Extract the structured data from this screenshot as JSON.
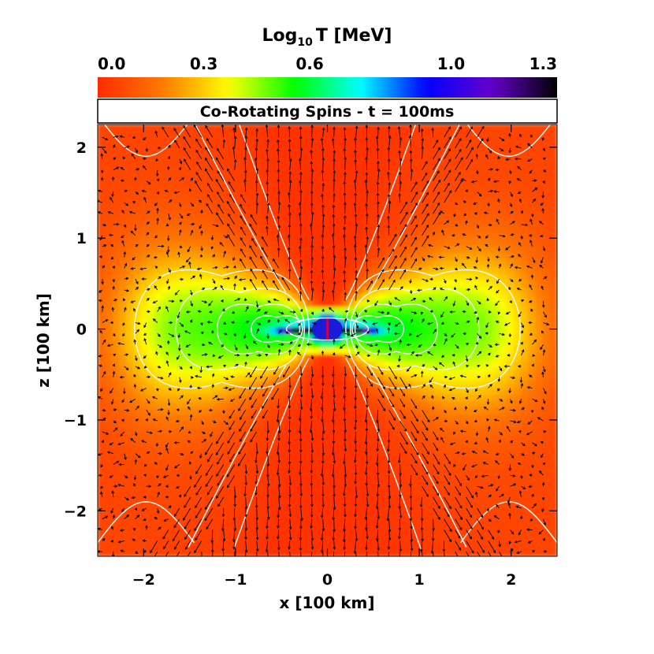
{
  "chart_data": {
    "type": "heatmap",
    "title": "Co-Rotating Spins - t = 100ms",
    "colorbar": {
      "label_main": "Log",
      "label_sub": "10",
      "label_rest": "T [MeV]",
      "ticks": [
        "0.0",
        "0.3",
        "0.6",
        "1.0",
        "1.3"
      ],
      "tick_values": [
        0.0,
        0.3,
        0.6,
        1.0,
        1.3
      ],
      "range": [
        0.0,
        1.3
      ],
      "colormap": [
        "#ff2a00",
        "#ff7a00",
        "#ffff00",
        "#00ff00",
        "#00ffff",
        "#0000ff",
        "#6600cc",
        "#000000"
      ]
    },
    "xlabel": "x [100 km]",
    "ylabel": "z [100 km]",
    "xlim": [
      -2.5,
      2.5
    ],
    "ylim": [
      -2.5,
      2.25
    ],
    "xticks": [
      -2,
      -1,
      0,
      1,
      2
    ],
    "xtick_labels": [
      "−2",
      "−1",
      "0",
      "1",
      "2"
    ],
    "yticks": [
      -2,
      -1,
      0,
      1,
      2
    ],
    "ytick_labels": [
      "−2",
      "−1",
      "0",
      "1",
      "2"
    ],
    "field_description": "Temperature peaks (~1.2) in a compact core at the origin, ~0.55 in a torus at |x|~0.3-1.2 near the equator, decreasing to ~0.05 along the polar funnels and the outer corners.",
    "overlays": [
      "white temperature contours",
      "black velocity vectors"
    ]
  }
}
